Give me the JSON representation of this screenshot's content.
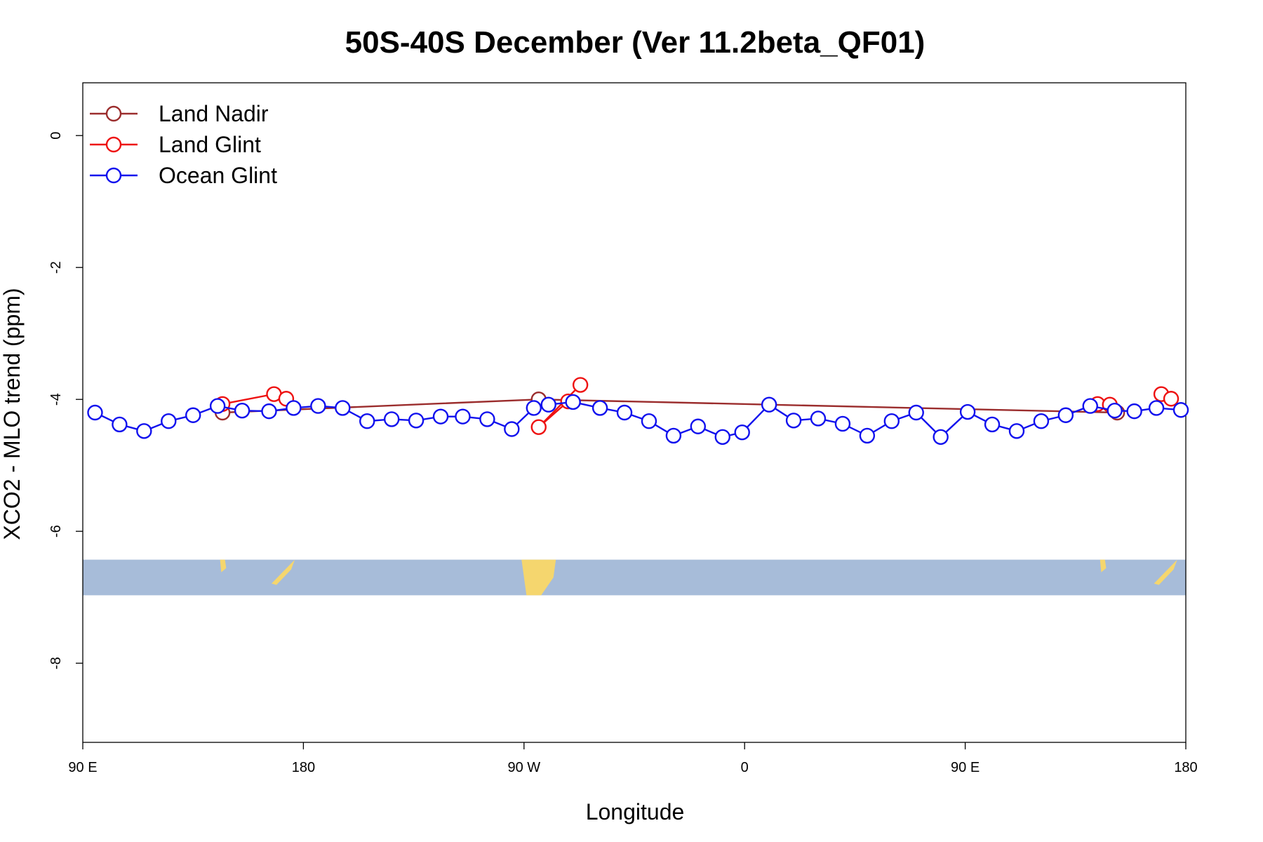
{
  "chart_data": {
    "type": "line",
    "title": "50S-40S December (Ver 11.2beta_QF01)",
    "xlabel": "Longitude",
    "ylabel": "XCO2 - MLO trend (ppm)",
    "xlim": [
      90,
      540
    ],
    "ylim": [
      -9.2,
      0.8
    ],
    "x_ticks": [
      {
        "value": 90,
        "label": "90 E"
      },
      {
        "value": 180,
        "label": "180"
      },
      {
        "value": 270,
        "label": "90 W"
      },
      {
        "value": 360,
        "label": "0"
      },
      {
        "value": 450,
        "label": "90 E"
      },
      {
        "value": 540,
        "label": "180"
      }
    ],
    "y_ticks": [
      {
        "value": 0,
        "label": "0"
      },
      {
        "value": -2,
        "label": "-2"
      },
      {
        "value": -4,
        "label": "-4"
      },
      {
        "value": -6,
        "label": "-6"
      },
      {
        "value": -8,
        "label": "-8"
      }
    ],
    "legend": {
      "position": "top-left"
    },
    "series": [
      {
        "name": "Land Nadir",
        "color": "#9b2d2d",
        "x": [
          147,
          276,
          512
        ],
        "y": [
          -4.2,
          -4.0,
          -4.2
        ]
      },
      {
        "name": "Land Glint",
        "color": "#ee1111",
        "x": [
          147,
          168,
          173,
          288,
          276,
          293,
          504,
          509,
          530,
          534
        ],
        "y": [
          -4.07,
          -3.92,
          -3.99,
          -4.03,
          -4.42,
          -3.78,
          -4.07,
          -4.08,
          -3.92,
          -3.99
        ],
        "segments": [
          [
            0,
            1
          ],
          [
            1,
            2
          ],
          [
            3,
            4
          ],
          [
            4,
            5
          ],
          [
            6,
            7
          ],
          [
            8,
            9
          ]
        ]
      },
      {
        "name": "Ocean Glint",
        "color": "#1111ee",
        "x": [
          95,
          105,
          115,
          125,
          135,
          145,
          155,
          166,
          176,
          186,
          196,
          206,
          216,
          226,
          236,
          245,
          255,
          265,
          274,
          280,
          290,
          301,
          311,
          321,
          331,
          341,
          351,
          359,
          370,
          380,
          390,
          400,
          410,
          420,
          430,
          440,
          451,
          461,
          471,
          481,
          491,
          501,
          511,
          519,
          528,
          538
        ],
        "y": [
          -4.2,
          -4.38,
          -4.48,
          -4.33,
          -4.24,
          -4.1,
          -4.17,
          -4.18,
          -4.13,
          -4.1,
          -4.13,
          -4.33,
          -4.3,
          -4.32,
          -4.26,
          -4.26,
          -4.3,
          -4.45,
          -4.13,
          -4.08,
          -4.04,
          -4.13,
          -4.2,
          -4.33,
          -4.55,
          -4.41,
          -4.57,
          -4.5,
          -4.08,
          -4.32,
          -4.29,
          -4.37,
          -4.55,
          -4.33,
          -4.2,
          -4.57,
          -4.19,
          -4.38,
          -4.48,
          -4.33,
          -4.24,
          -4.1,
          -4.17,
          -4.18,
          -4.13,
          -4.16
        ]
      }
    ],
    "map_strip": {
      "y_range": [
        -6.97,
        -6.43
      ],
      "ocean_color": "#a7bcd9",
      "land_color": "#f5d66e"
    }
  }
}
